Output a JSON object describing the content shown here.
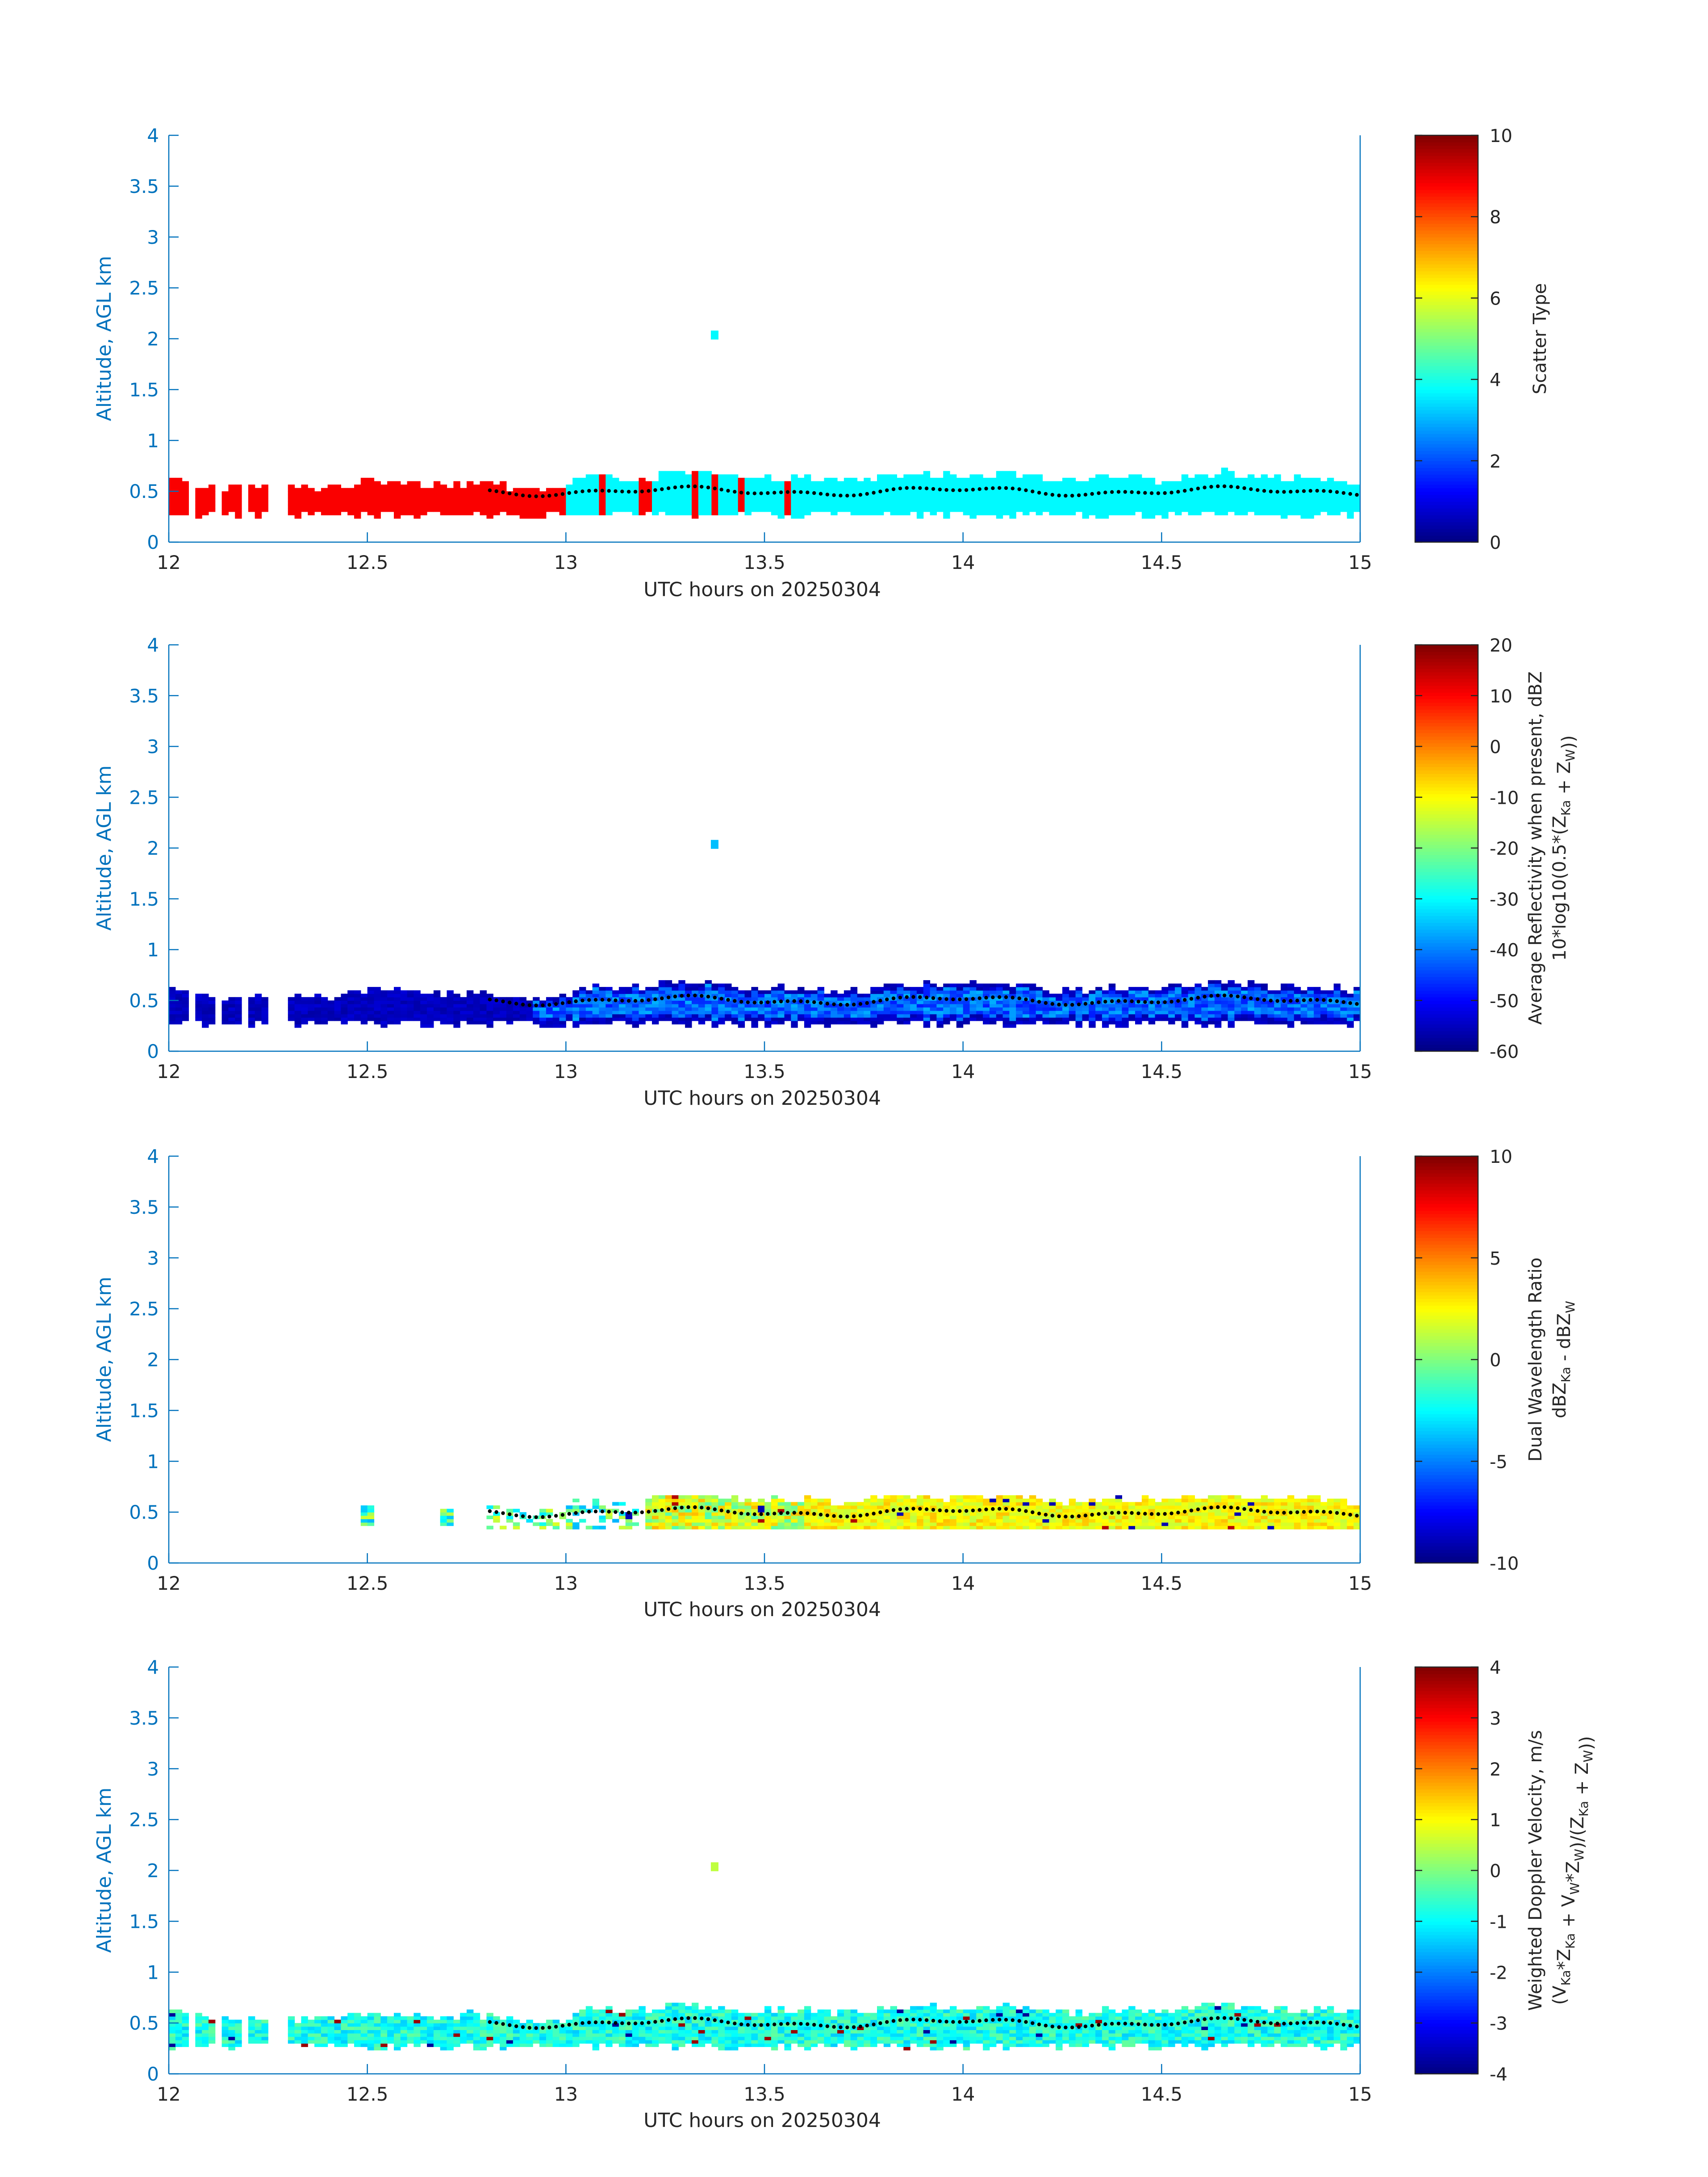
{
  "chart_data": [
    {
      "type": "heatmap",
      "xlabel": "UTC hours on 20250304",
      "ylabel": "Altitude, AGL km",
      "xlim": [
        12,
        15
      ],
      "ylim": [
        0,
        4
      ],
      "xticks": [
        "12",
        "12.5",
        "13",
        "13.5",
        "14",
        "14.5",
        "15"
      ],
      "yticks": [
        "0",
        "0.5",
        "1",
        "1.5",
        "2",
        "2.5",
        "3",
        "3.5",
        "4"
      ],
      "colorbar": {
        "label": "Scatter Type",
        "label2": "",
        "range": [
          0,
          10
        ],
        "ticks": [
          "0",
          "2",
          "4",
          "6",
          "8",
          "10"
        ]
      },
      "fill": {
        "before_13": 8.8,
        "after_13": 3.7,
        "spikes_13_to_13_57": 8.8,
        "isolated_2km": 3.7
      },
      "cloud_top_series": "black dotted line near 0.5 km"
    },
    {
      "type": "heatmap",
      "xlabel": "UTC hours on 20250304",
      "ylabel": "Altitude, AGL km",
      "xlim": [
        12,
        15
      ],
      "ylim": [
        0,
        4
      ],
      "xticks": [
        "12",
        "12.5",
        "13",
        "13.5",
        "14",
        "14.5",
        "15"
      ],
      "yticks": [
        "0",
        "0.5",
        "1",
        "1.5",
        "2",
        "2.5",
        "3",
        "3.5",
        "4"
      ],
      "colorbar": {
        "label": "Average Reflectivity when present, dBZ",
        "label2": "10*log10(0.5*(Z",
        "label2_sub1": "Ka",
        "label2_mid": " + Z",
        "label2_sub2": "W",
        "label2_end": "))",
        "range": [
          -60,
          20
        ],
        "ticks": [
          "-60",
          "-50",
          "-40",
          "-30",
          "-20",
          "-10",
          "0",
          "10",
          "20"
        ]
      },
      "fill": {
        "base_dbz": -57,
        "core_dbz": -48,
        "isolated_2km_dbz": -35
      }
    },
    {
      "type": "heatmap",
      "xlabel": "UTC hours on 20250304",
      "ylabel": "Altitude, AGL km",
      "xlim": [
        12,
        15
      ],
      "ylim": [
        0,
        4
      ],
      "xticks": [
        "12",
        "12.5",
        "13",
        "13.5",
        "14",
        "14.5",
        "15"
      ],
      "yticks": [
        "0",
        "0.5",
        "1",
        "1.5",
        "2",
        "2.5",
        "3",
        "3.5",
        "4"
      ],
      "colorbar": {
        "label": "Dual Wavelength Ratio",
        "label2": "dBZ",
        "label2_sub1": "Ka",
        "label2_mid": " - dBZ",
        "label2_sub2": "W",
        "label2_end": "",
        "range": [
          -10,
          10
        ],
        "ticks": [
          "-10",
          "-5",
          "0",
          "5",
          "10"
        ]
      },
      "fill": {
        "early_db": -4,
        "mid_db": -1,
        "late_db": 2.5
      }
    },
    {
      "type": "heatmap",
      "xlabel": "UTC hours on 20250304",
      "ylabel": "Altitude, AGL km",
      "xlim": [
        12,
        15
      ],
      "ylim": [
        0,
        4
      ],
      "xticks": [
        "12",
        "12.5",
        "13",
        "13.5",
        "14",
        "14.5",
        "15"
      ],
      "yticks": [
        "0",
        "0.5",
        "1",
        "1.5",
        "2",
        "2.5",
        "3",
        "3.5",
        "4"
      ],
      "colorbar": {
        "label": "Weighted Doppler Velocity, m/s",
        "label2": "(V",
        "label2_sub1": "Ka",
        "label2_b": "*Z",
        "label2_sub1b": "Ka",
        "label2_c": " + V",
        "label2_sub2": "W",
        "label2_d": "*Z",
        "label2_sub2b": "W",
        "label2_e": ")/(Z",
        "label2_sub1c": "Ka",
        "label2_f": " + Z",
        "label2_sub2c": "W",
        "label2_end": "))",
        "range": [
          -4,
          4
        ],
        "ticks": [
          "-4",
          "-3",
          "-2",
          "-1",
          "0",
          "1",
          "2",
          "3",
          "4"
        ]
      },
      "fill": {
        "base_ms": -0.8,
        "isolated_2km_ms": 0.5
      }
    }
  ],
  "colors": {
    "axis": "#0072bd",
    "text": "#262626",
    "dots": "#000000"
  }
}
